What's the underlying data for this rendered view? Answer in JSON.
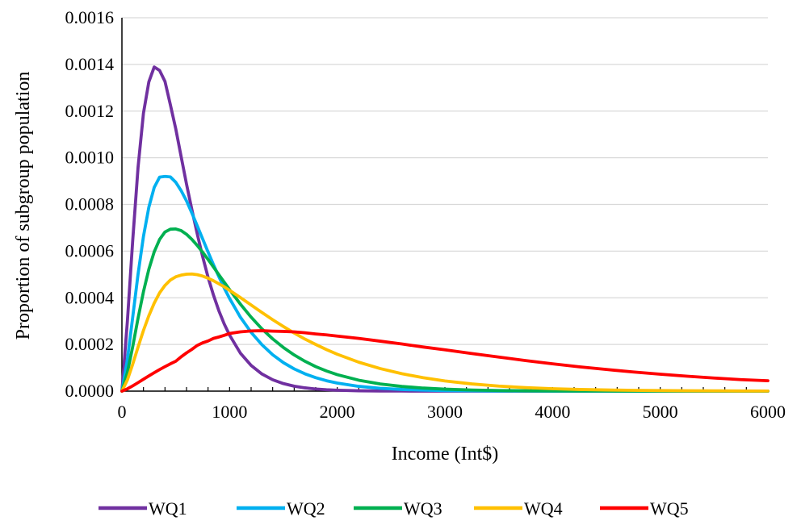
{
  "chart_data": {
    "type": "line",
    "title": "",
    "xlabel": "Income (Int$)",
    "ylabel": "Proportion of subgroup population",
    "xlim": [
      0,
      6000
    ],
    "ylim": [
      0,
      0.0016
    ],
    "x_ticks": [
      "0",
      "1000",
      "2000",
      "3000",
      "4000",
      "5000",
      "6000"
    ],
    "y_ticks": [
      "0.0000",
      "0.0002",
      "0.0004",
      "0.0006",
      "0.0008",
      "0.0010",
      "0.0012",
      "0.0014",
      "0.0016"
    ],
    "grid": "horizontal",
    "legend_position": "bottom",
    "x": [
      0,
      50,
      100,
      150,
      200,
      250,
      300,
      350,
      400,
      450,
      500,
      550,
      600,
      650,
      700,
      750,
      800,
      850,
      900,
      950,
      1000,
      1100,
      1200,
      1300,
      1400,
      1500,
      1600,
      1700,
      1800,
      1900,
      2000,
      2200,
      2400,
      2600,
      2800,
      3000,
      3250,
      3500,
      3750,
      4000,
      4250,
      4500,
      4750,
      5000,
      5250,
      5500,
      5750,
      6000
    ],
    "series": [
      {
        "name": "WQ1",
        "color": "#7030a0",
        "values": [
          0,
          0.000295,
          0.000644,
          0.00096,
          0.001191,
          0.001325,
          0.001389,
          0.001374,
          0.001327,
          0.001227,
          0.001124,
          0.001005,
          0.000887,
          0.000777,
          0.000673,
          0.000576,
          0.000488,
          0.000412,
          0.000345,
          0.000288,
          0.00024,
          0.000163,
          0.00011,
          7.35e-05,
          4.88e-05,
          3.23e-05,
          2.13e-05,
          1.4e-05,
          9.2e-06,
          6e-06,
          3.9e-06,
          1.6e-06,
          7e-07,
          3e-07,
          1e-07,
          0,
          0,
          0,
          0,
          0,
          0,
          0,
          0,
          0,
          0,
          0,
          0,
          0
        ]
      },
      {
        "name": "WQ2",
        "color": "#00b0f0",
        "values": [
          0,
          0.000133,
          0.000316,
          0.000502,
          0.000663,
          0.000788,
          0.000873,
          0.000917,
          0.00092,
          0.000918,
          0.000895,
          0.000859,
          0.000815,
          0.000763,
          0.000708,
          0.000652,
          0.000596,
          0.000542,
          0.000491,
          0.000442,
          0.000397,
          0.000317,
          0.000252,
          0.000199,
          0.000156,
          0.000122,
          9.52e-05,
          7.42e-05,
          5.76e-05,
          4.46e-05,
          3.45e-05,
          2.05e-05,
          1.21e-05,
          7.1e-06,
          4.2e-06,
          2.4e-06,
          1.2e-06,
          6e-07,
          3e-07,
          1e-07,
          0,
          0,
          0,
          0,
          0,
          0,
          0,
          0
        ]
      },
      {
        "name": "WQ3",
        "color": "#00b050",
        "values": [
          0,
          7.84e-05,
          0.00019,
          0.000313,
          0.000426,
          0.000522,
          0.000597,
          0.00065,
          0.000682,
          0.000694,
          0.000695,
          0.000688,
          0.000672,
          0.00065,
          0.000624,
          0.000595,
          0.000564,
          0.000532,
          0.000499,
          0.000467,
          0.000435,
          0.000373,
          0.000317,
          0.000267,
          0.000224,
          0.000187,
          0.000155,
          0.000128,
          0.000105,
          8.64e-05,
          7.06e-05,
          4.68e-05,
          3.08e-05,
          2.01e-05,
          1.31e-05,
          8.5e-06,
          4.8e-06,
          2.7e-06,
          1.5e-06,
          8e-07,
          5e-07,
          3e-07,
          1e-07,
          0,
          0,
          0,
          0,
          0
        ]
      },
      {
        "name": "WQ4",
        "color": "#ffc000",
        "values": [
          0,
          4.72e-05,
          0.000115,
          0.000189,
          0.00026,
          0.000323,
          0.000377,
          0.000421,
          0.000453,
          0.000476,
          0.00049,
          0.000497,
          0.000501,
          0.000502,
          0.000499,
          0.000493,
          0.000484,
          0.000473,
          0.00046,
          0.000447,
          0.000432,
          0.000401,
          0.000369,
          0.000337,
          0.000306,
          0.000277,
          0.000249,
          0.000223,
          0.0002,
          0.000178,
          0.000158,
          0.000124,
          9.65e-05,
          7.46e-05,
          5.73e-05,
          4.38e-05,
          3.09e-05,
          2.16e-05,
          1.5e-05,
          1.04e-05,
          7.2e-06,
          5e-06,
          3.4e-06,
          2.3e-06,
          1.6e-06,
          1.1e-06,
          7e-07,
          5e-07
        ]
      },
      {
        "name": "WQ5",
        "color": "#ff0000",
        "values": [
          0,
          9.6e-06,
          2.24e-05,
          3.65e-05,
          5.09e-05,
          6.52e-05,
          7.91e-05,
          9.24e-05,
          0.000105,
          0.000117,
          0.000128,
          0.000147,
          0.000164,
          0.000179,
          0.000196,
          0.000207,
          0.000215,
          0.000226,
          0.000232,
          0.000239,
          0.000247,
          0.000254,
          0.000258,
          0.000259,
          0.000257,
          0.000256,
          0.000254,
          0.00025,
          0.000245,
          0.000241,
          0.000236,
          0.000226,
          0.000214,
          0.000202,
          0.000189,
          0.000177,
          0.000161,
          0.000146,
          0.000131,
          0.000117,
          0.000104,
          9.27e-05,
          8.2e-05,
          7.25e-05,
          6.39e-05,
          5.62e-05,
          4.93e-05,
          4.46e-05
        ]
      }
    ]
  }
}
